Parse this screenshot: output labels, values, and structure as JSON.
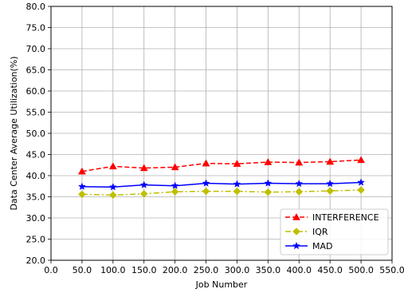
{
  "chart_data": {
    "type": "line",
    "title": "",
    "xlabel": "Job Number",
    "ylabel": "Data Center Average Utilization(%)",
    "xlim": [
      0,
      550
    ],
    "ylim": [
      20,
      80
    ],
    "x_ticks": [
      "0.0",
      "50.0",
      "100.0",
      "150.0",
      "200.0",
      "250.0",
      "300.0",
      "350.0",
      "400.0",
      "450.0",
      "500.0",
      "550.0"
    ],
    "y_ticks": [
      "20.0",
      "25.0",
      "30.0",
      "35.0",
      "40.0",
      "45.0",
      "50.0",
      "55.0",
      "60.0",
      "65.0",
      "70.0",
      "75.0",
      "80.0"
    ],
    "x": [
      50,
      100,
      150,
      200,
      250,
      300,
      350,
      400,
      450,
      500
    ],
    "grid": true,
    "legend_position": "lower-right",
    "series": [
      {
        "name": "INTERFERENCE",
        "color": "#ff0000",
        "marker": "triangle",
        "linestyle": "dashed",
        "values": [
          41.0,
          42.2,
          41.8,
          42.0,
          42.9,
          42.8,
          43.2,
          43.1,
          43.3,
          43.7
        ]
      },
      {
        "name": "IQR",
        "color": "#bfbf00",
        "marker": "diamond",
        "linestyle": "dashdot",
        "values": [
          35.6,
          35.4,
          35.7,
          36.2,
          36.3,
          36.3,
          36.1,
          36.2,
          36.4,
          36.6
        ]
      },
      {
        "name": "MAD",
        "color": "#0000ff",
        "marker": "star",
        "linestyle": "solid",
        "values": [
          37.4,
          37.3,
          37.8,
          37.6,
          38.2,
          38.0,
          38.2,
          38.1,
          38.1,
          38.4
        ]
      }
    ]
  }
}
